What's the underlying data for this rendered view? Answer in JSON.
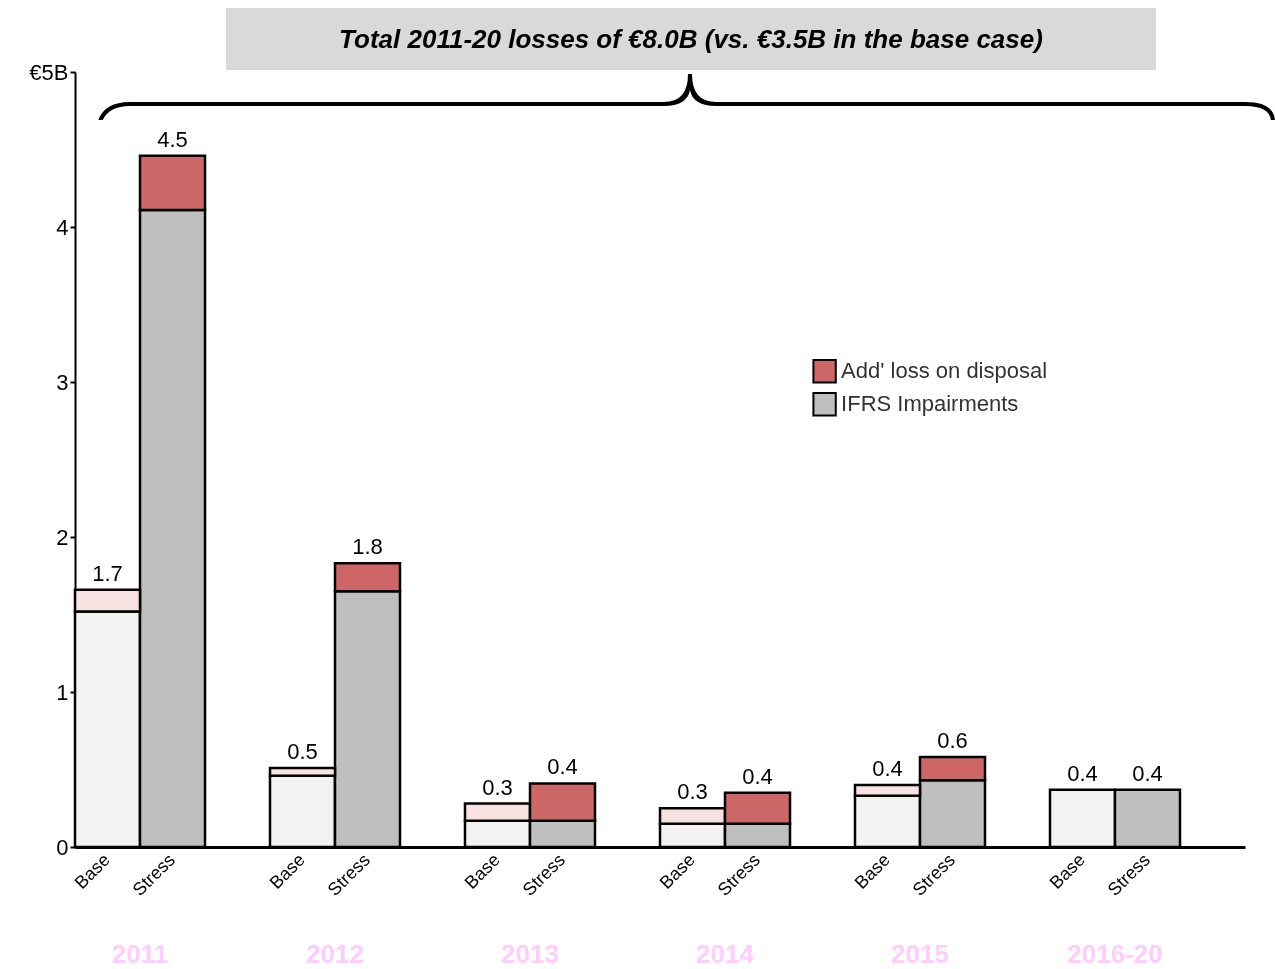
{
  "chart_data": {
    "type": "bar",
    "stacked": true,
    "annotations": [
      "Total 2011-20 losses of €8.0B (vs. €3.5B in the base case)",
      "2011",
      "2012",
      "2013",
      "2014",
      "2015",
      "2016-20"
    ],
    "categories": [
      "Base",
      "Stress",
      "Base",
      "Stress",
      "Base",
      "Stress",
      "Base",
      "Stress",
      "Base",
      "Stress",
      "Base",
      "Stress"
    ],
    "series": [
      {
        "name": "IFRS Impairments",
        "color": "#bfbfbf",
        "colors": [
          "#f2f2f2",
          "#bfbfbf",
          "#f2f2f2",
          "#bfbfbf",
          "#f2f2f2",
          "#bfbfbf",
          "#f2f2f2",
          "#bfbfbf",
          "#f2f2f2",
          "#bfbfbf",
          "#f2f2f2",
          "#bfbfbf"
        ],
        "values": [
          1.52,
          4.11,
          0.46,
          1.65,
          0.17,
          0.17,
          0.15,
          0.15,
          0.33,
          0.43,
          0.37,
          0.37
        ]
      },
      {
        "name": "Add' loss on disposal",
        "color": "#cd6666",
        "colors": [
          "#f7e1e1",
          "#cd6666",
          "#f7e1e1",
          "#cd6666",
          "#f7e1e1",
          "#cd6666",
          "#f7e1e1",
          "#cd6666",
          "#f7e1e1",
          "#cd6666",
          "#f7e1e1",
          "#cd6666"
        ],
        "values": [
          0.14,
          0.35,
          0.05,
          0.18,
          0.11,
          0.24,
          0.1,
          0.2,
          0.07,
          0.15,
          null,
          null
        ]
      }
    ],
    "totals": [
      "1.7",
      "4.5",
      "0.5",
      "1.8",
      "0.3",
      "0.4",
      "0.3",
      "0.4",
      "0.4",
      "0.6",
      "0.4",
      "0.4"
    ],
    "ylim": [
      0,
      5
    ],
    "yticks": [
      0,
      1,
      2,
      3,
      4,
      {
        "value": 5,
        "label": "€5B"
      }
    ],
    "grid": false,
    "legend": "right"
  }
}
